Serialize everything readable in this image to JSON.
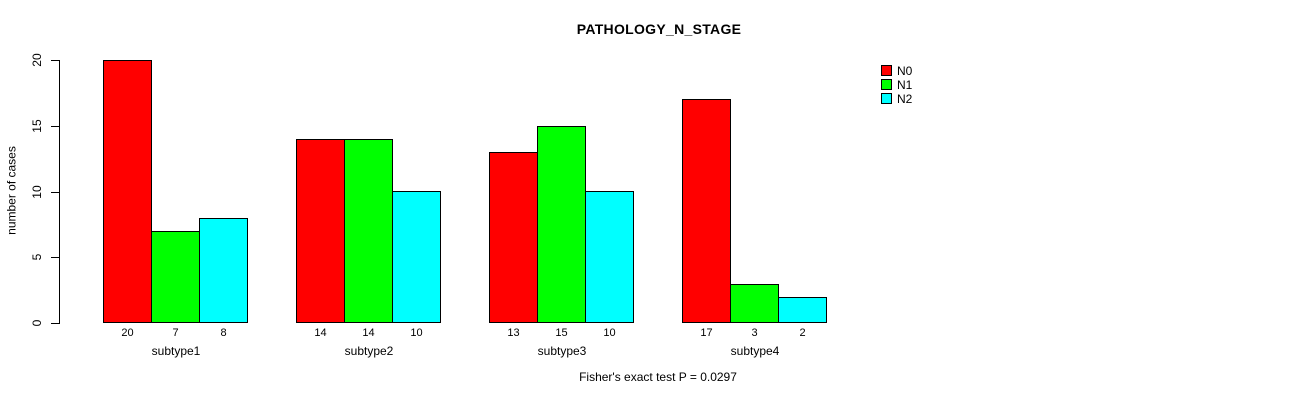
{
  "chart_data": {
    "type": "bar",
    "title": "PATHOLOGY_N_STAGE",
    "categories": [
      "subtype1",
      "subtype2",
      "subtype3",
      "subtype4"
    ],
    "series": [
      {
        "name": "N0",
        "color": "#FF0000",
        "values": [
          20,
          14,
          13,
          17
        ]
      },
      {
        "name": "N1",
        "color": "#00FF00",
        "values": [
          7,
          14,
          15,
          3
        ]
      },
      {
        "name": "N2",
        "color": "#00FFFF",
        "values": [
          8,
          10,
          10,
          2
        ]
      }
    ],
    "xlabel": "",
    "ylabel": "number of cases",
    "ylim": [
      0,
      20
    ],
    "yticks": [
      0,
      5,
      10,
      15,
      20
    ],
    "grid": false,
    "bar_value_labels": true,
    "legend_position": "top-right",
    "annotation": "Fisher's exact test P = 0.0297"
  }
}
